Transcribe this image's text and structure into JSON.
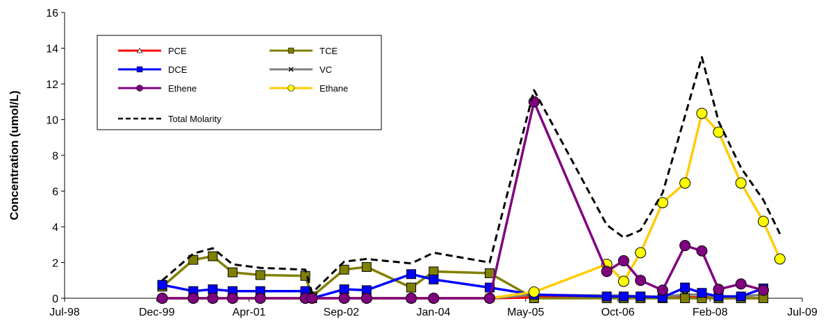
{
  "chart_data": {
    "type": "line",
    "title": "",
    "xlabel": "",
    "ylabel": "Concentration (umol/L)",
    "x_ticks": [
      "Jul-98",
      "Dec-99",
      "Apr-01",
      "Sep-02",
      "Jan-04",
      "May-05",
      "Oct-06",
      "Feb-08",
      "Jul-09"
    ],
    "y_ticks": [
      "0",
      "2",
      "4",
      "6",
      "8",
      "10",
      "12",
      "14",
      "16"
    ],
    "xlim": [
      "1998-07-01",
      "2009-07-01"
    ],
    "ylim": [
      0,
      16
    ],
    "grid": false,
    "legend_position": "top-left",
    "series": [
      {
        "name": "PCE",
        "color": "#ff0000",
        "marker": "triangle",
        "dashed": false,
        "points": [
          {
            "x": "1999-12-15",
            "y": 0.0
          },
          {
            "x": "2000-06-01",
            "y": 0.0
          },
          {
            "x": "2000-09-15",
            "y": 0.0
          },
          {
            "x": "2001-01-01",
            "y": 0.0
          },
          {
            "x": "2001-06-01",
            "y": 0.0
          },
          {
            "x": "2002-02-01",
            "y": 0.0
          },
          {
            "x": "2002-03-10",
            "y": 0.0
          },
          {
            "x": "2002-09-01",
            "y": 0.0
          },
          {
            "x": "2003-01-01",
            "y": 0.0
          },
          {
            "x": "2003-09-01",
            "y": 0.0
          },
          {
            "x": "2004-01-01",
            "y": 0.0
          },
          {
            "x": "2004-11-01",
            "y": 0.0
          },
          {
            "x": "2005-07-01",
            "y": 0.05
          },
          {
            "x": "2006-08-01",
            "y": 0.05
          },
          {
            "x": "2006-11-01",
            "y": 0.05
          },
          {
            "x": "2007-02-01",
            "y": 0.05
          },
          {
            "x": "2007-06-01",
            "y": 0.05
          },
          {
            "x": "2007-10-01",
            "y": 0.05
          },
          {
            "x": "2008-01-01",
            "y": 0.05
          },
          {
            "x": "2008-04-01",
            "y": 0.0
          },
          {
            "x": "2008-08-01",
            "y": 0.0
          },
          {
            "x": "2008-12-01",
            "y": 0.0
          }
        ]
      },
      {
        "name": "TCE",
        "color": "#808000",
        "marker": "square",
        "dashed": false,
        "points": [
          {
            "x": "1999-12-15",
            "y": 0.65
          },
          {
            "x": "2000-06-01",
            "y": 2.15
          },
          {
            "x": "2000-09-15",
            "y": 2.35
          },
          {
            "x": "2001-01-01",
            "y": 1.45
          },
          {
            "x": "2001-06-01",
            "y": 1.3
          },
          {
            "x": "2002-02-01",
            "y": 1.25
          },
          {
            "x": "2002-03-10",
            "y": 0.1
          },
          {
            "x": "2002-09-01",
            "y": 1.6
          },
          {
            "x": "2003-01-01",
            "y": 1.75
          },
          {
            "x": "2003-09-01",
            "y": 0.6
          },
          {
            "x": "2004-01-01",
            "y": 1.5
          },
          {
            "x": "2004-11-01",
            "y": 1.4
          },
          {
            "x": "2005-07-01",
            "y": 0.0
          },
          {
            "x": "2006-08-01",
            "y": 0.0
          },
          {
            "x": "2006-11-01",
            "y": 0.0
          },
          {
            "x": "2007-02-01",
            "y": 0.0
          },
          {
            "x": "2007-06-01",
            "y": 0.0
          },
          {
            "x": "2007-10-01",
            "y": 0.0
          },
          {
            "x": "2008-01-01",
            "y": 0.0
          },
          {
            "x": "2008-04-01",
            "y": 0.0
          },
          {
            "x": "2008-08-01",
            "y": 0.0
          },
          {
            "x": "2008-12-01",
            "y": 0.0
          }
        ]
      },
      {
        "name": "DCE",
        "color": "#0000ff",
        "marker": "square",
        "dashed": false,
        "points": [
          {
            "x": "1999-12-15",
            "y": 0.75
          },
          {
            "x": "2000-06-01",
            "y": 0.4
          },
          {
            "x": "2000-09-15",
            "y": 0.5
          },
          {
            "x": "2001-01-01",
            "y": 0.4
          },
          {
            "x": "2001-06-01",
            "y": 0.4
          },
          {
            "x": "2002-02-01",
            "y": 0.4
          },
          {
            "x": "2002-03-10",
            "y": 0.0
          },
          {
            "x": "2002-09-01",
            "y": 0.5
          },
          {
            "x": "2003-01-01",
            "y": 0.45
          },
          {
            "x": "2003-09-01",
            "y": 1.35
          },
          {
            "x": "2004-01-01",
            "y": 1.05
          },
          {
            "x": "2004-11-01",
            "y": 0.6
          },
          {
            "x": "2005-07-01",
            "y": 0.2
          },
          {
            "x": "2006-08-01",
            "y": 0.1
          },
          {
            "x": "2006-11-01",
            "y": 0.1
          },
          {
            "x": "2007-02-01",
            "y": 0.1
          },
          {
            "x": "2007-06-01",
            "y": 0.05
          },
          {
            "x": "2007-10-01",
            "y": 0.6
          },
          {
            "x": "2008-01-01",
            "y": 0.3
          },
          {
            "x": "2008-04-01",
            "y": 0.1
          },
          {
            "x": "2008-08-01",
            "y": 0.1
          },
          {
            "x": "2008-12-01",
            "y": 0.55
          }
        ]
      },
      {
        "name": "VC",
        "color": "#808080",
        "marker": "x",
        "dashed": false,
        "points": [
          {
            "x": "1999-12-15",
            "y": 0.0
          },
          {
            "x": "2000-06-01",
            "y": 0.0
          },
          {
            "x": "2000-09-15",
            "y": 0.0
          },
          {
            "x": "2001-01-01",
            "y": 0.0
          },
          {
            "x": "2001-06-01",
            "y": 0.0
          },
          {
            "x": "2002-02-01",
            "y": 0.0
          },
          {
            "x": "2002-03-10",
            "y": 0.0
          },
          {
            "x": "2002-09-01",
            "y": 0.0
          },
          {
            "x": "2003-01-01",
            "y": 0.0
          },
          {
            "x": "2003-09-01",
            "y": 0.0
          },
          {
            "x": "2004-01-01",
            "y": 0.0
          },
          {
            "x": "2004-11-01",
            "y": 0.0
          },
          {
            "x": "2005-07-01",
            "y": 0.2
          },
          {
            "x": "2006-08-01",
            "y": 0.15
          },
          {
            "x": "2006-11-01",
            "y": 0.15
          },
          {
            "x": "2007-02-01",
            "y": 0.1
          },
          {
            "x": "2007-06-01",
            "y": 0.1
          },
          {
            "x": "2007-10-01",
            "y": 0.2
          },
          {
            "x": "2008-01-01",
            "y": 0.2
          },
          {
            "x": "2008-04-01",
            "y": 0.1
          },
          {
            "x": "2008-08-01",
            "y": 0.1
          },
          {
            "x": "2008-12-01",
            "y": 0.2
          }
        ]
      },
      {
        "name": "Ethene",
        "color": "#800080",
        "marker": "circle",
        "dashed": false,
        "points": [
          {
            "x": "1999-12-15",
            "y": 0.0
          },
          {
            "x": "2000-06-01",
            "y": 0.0
          },
          {
            "x": "2000-09-15",
            "y": 0.0
          },
          {
            "x": "2001-01-01",
            "y": 0.0
          },
          {
            "x": "2001-06-01",
            "y": 0.0
          },
          {
            "x": "2002-02-01",
            "y": 0.0
          },
          {
            "x": "2002-03-10",
            "y": 0.0
          },
          {
            "x": "2002-09-01",
            "y": 0.0
          },
          {
            "x": "2003-01-01",
            "y": 0.0
          },
          {
            "x": "2003-09-01",
            "y": 0.0
          },
          {
            "x": "2004-01-01",
            "y": 0.0
          },
          {
            "x": "2004-11-01",
            "y": 0.0
          },
          {
            "x": "2005-07-01",
            "y": 11.0
          },
          {
            "x": "2006-08-01",
            "y": 1.5
          },
          {
            "x": "2006-11-01",
            "y": 2.1
          },
          {
            "x": "2007-02-01",
            "y": 1.0
          },
          {
            "x": "2007-06-01",
            "y": 0.45
          },
          {
            "x": "2007-10-01",
            "y": 2.95
          },
          {
            "x": "2008-01-01",
            "y": 2.65
          },
          {
            "x": "2008-04-01",
            "y": 0.5
          },
          {
            "x": "2008-08-01",
            "y": 0.8
          },
          {
            "x": "2008-12-01",
            "y": 0.45
          }
        ]
      },
      {
        "name": "Ethane",
        "color": "#ffcc00",
        "marker": "circle",
        "dashed": false,
        "points": [
          {
            "x": "1999-12-15",
            "y": 0.0
          },
          {
            "x": "2000-06-01",
            "y": 0.0
          },
          {
            "x": "2000-09-15",
            "y": 0.0
          },
          {
            "x": "2001-01-01",
            "y": 0.0
          },
          {
            "x": "2001-06-01",
            "y": 0.0
          },
          {
            "x": "2002-02-01",
            "y": 0.0
          },
          {
            "x": "2002-03-10",
            "y": 0.0
          },
          {
            "x": "2002-09-01",
            "y": 0.0
          },
          {
            "x": "2003-01-01",
            "y": 0.0
          },
          {
            "x": "2003-09-01",
            "y": 0.0
          },
          {
            "x": "2004-01-01",
            "y": 0.0
          },
          {
            "x": "2004-11-01",
            "y": 0.0
          },
          {
            "x": "2005-07-01",
            "y": 0.35
          },
          {
            "x": "2006-08-01",
            "y": 1.9
          },
          {
            "x": "2006-11-01",
            "y": 0.95
          },
          {
            "x": "2007-02-01",
            "y": 2.55
          },
          {
            "x": "2007-06-01",
            "y": 5.35
          },
          {
            "x": "2007-10-01",
            "y": 6.45
          },
          {
            "x": "2008-01-01",
            "y": 10.35
          },
          {
            "x": "2008-04-01",
            "y": 9.3
          },
          {
            "x": "2008-08-01",
            "y": 6.45
          },
          {
            "x": "2008-12-01",
            "y": 4.3
          },
          {
            "x": "2009-03-01",
            "y": 2.2
          }
        ]
      },
      {
        "name": "Total Molarity",
        "color": "#000000",
        "marker": "none",
        "dashed": true,
        "points": [
          {
            "x": "1999-12-15",
            "y": 1.0
          },
          {
            "x": "2000-06-01",
            "y": 2.5
          },
          {
            "x": "2000-09-15",
            "y": 2.8
          },
          {
            "x": "2001-01-01",
            "y": 1.9
          },
          {
            "x": "2001-06-01",
            "y": 1.7
          },
          {
            "x": "2002-02-01",
            "y": 1.6
          },
          {
            "x": "2002-03-10",
            "y": 0.3
          },
          {
            "x": "2002-09-01",
            "y": 2.05
          },
          {
            "x": "2003-01-01",
            "y": 2.2
          },
          {
            "x": "2003-09-01",
            "y": 1.95
          },
          {
            "x": "2004-01-01",
            "y": 2.55
          },
          {
            "x": "2004-11-01",
            "y": 2.0
          },
          {
            "x": "2005-07-01",
            "y": 11.65
          },
          {
            "x": "2006-08-01",
            "y": 4.1
          },
          {
            "x": "2006-11-01",
            "y": 3.4
          },
          {
            "x": "2007-02-01",
            "y": 3.8
          },
          {
            "x": "2007-06-01",
            "y": 5.9
          },
          {
            "x": "2007-10-01",
            "y": 10.2
          },
          {
            "x": "2008-01-01",
            "y": 13.5
          },
          {
            "x": "2008-04-01",
            "y": 9.9
          },
          {
            "x": "2008-08-01",
            "y": 7.3
          },
          {
            "x": "2008-12-01",
            "y": 5.5
          },
          {
            "x": "2009-03-01",
            "y": 3.6
          }
        ]
      }
    ]
  }
}
